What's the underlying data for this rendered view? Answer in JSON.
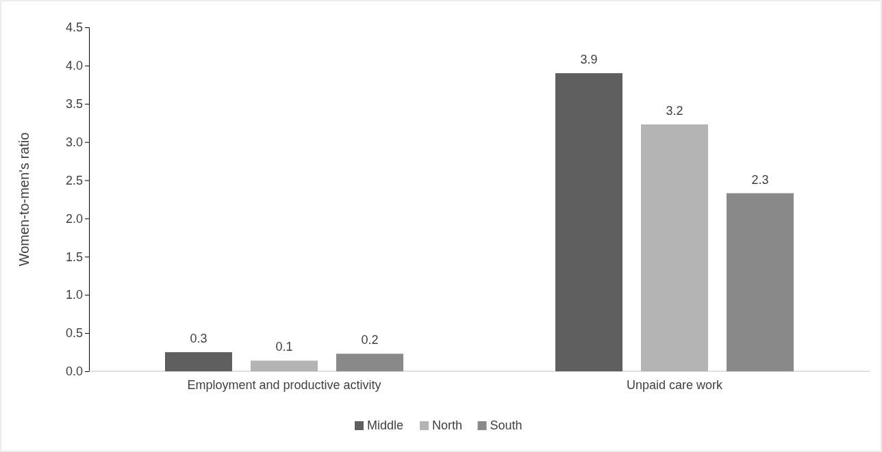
{
  "chart_data": {
    "type": "bar",
    "ylabel": "Women-to-men's ratio",
    "categories": [
      "Employment and productive activity",
      "Unpaid care work"
    ],
    "series": [
      {
        "name": "Middle",
        "color": "#5f5f5f",
        "values": [
          0.25,
          3.9
        ],
        "value_labels": [
          "0.3",
          "3.9"
        ]
      },
      {
        "name": "North",
        "color": "#b4b4b4",
        "values": [
          0.14,
          3.23
        ],
        "value_labels": [
          "0.1",
          "3.2"
        ]
      },
      {
        "name": "South",
        "color": "#898989",
        "values": [
          0.23,
          2.33
        ],
        "value_labels": [
          "0.2",
          "2.3"
        ]
      }
    ],
    "ylim": [
      0,
      4.5
    ],
    "yticks": [
      {
        "value": 0,
        "label": "0.0"
      },
      {
        "value": 0.5,
        "label": "0.5"
      },
      {
        "value": 1,
        "label": "1.0"
      },
      {
        "value": 1.5,
        "label": "1.5"
      },
      {
        "value": 2,
        "label": "2.0"
      },
      {
        "value": 2.5,
        "label": "2.5"
      },
      {
        "value": 3,
        "label": "3.0"
      },
      {
        "value": 3.5,
        "label": "3.5"
      },
      {
        "value": 4,
        "label": "4.0"
      },
      {
        "value": 4.5,
        "label": "4.5"
      }
    ],
    "grid": false,
    "legend": "bottom"
  }
}
